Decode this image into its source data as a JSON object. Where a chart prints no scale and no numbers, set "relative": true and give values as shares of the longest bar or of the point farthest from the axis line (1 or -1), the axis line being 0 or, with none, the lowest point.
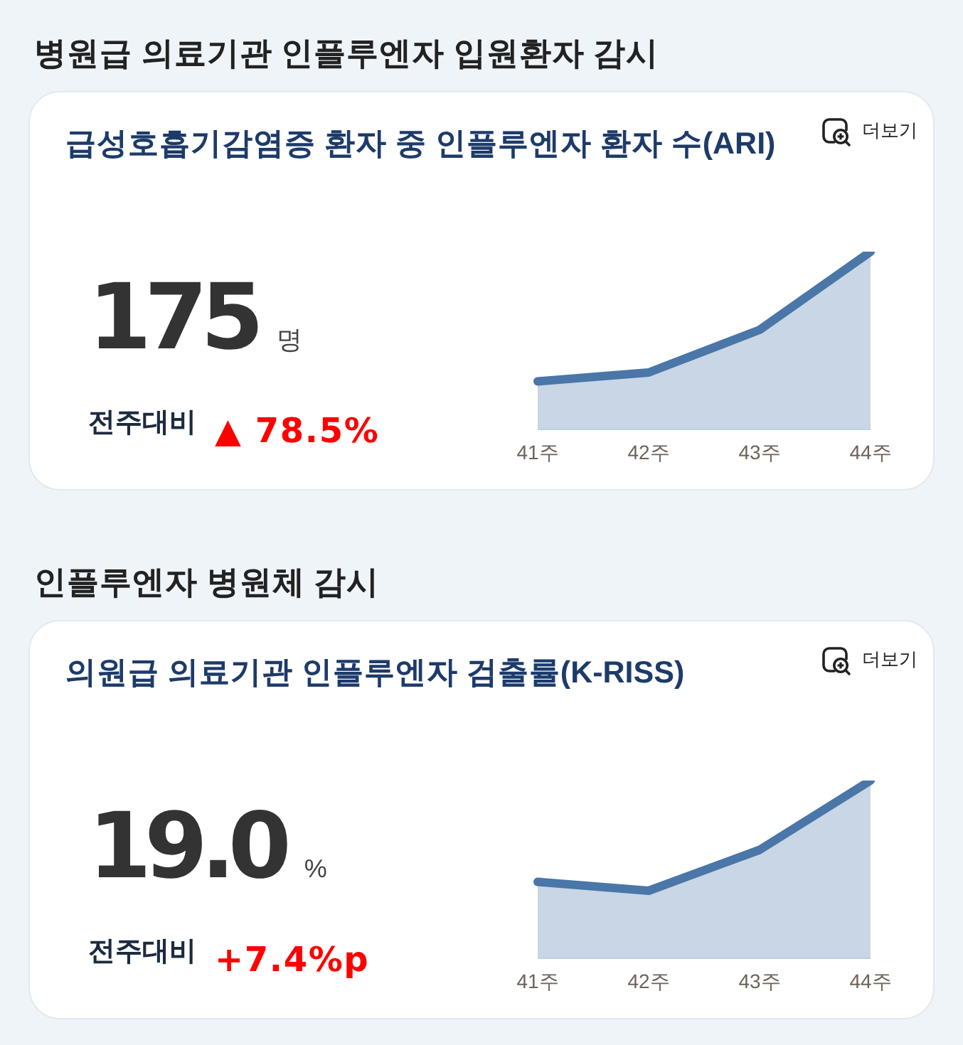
{
  "chart_data": [
    {
      "type": "area",
      "title": "병원급 의료기관 인플루엔자 입원환자 감시",
      "subtitle": "급성호흡기감염증 환자 중 인플루엔자 환자 수(ARI)",
      "categories": [
        "41주",
        "42주",
        "43주",
        "44주"
      ],
      "values": [
        0.27,
        0.32,
        0.56,
        1
      ],
      "relative": true,
      "color": "#4a76a8",
      "annotations": [
        "175",
        "명",
        "전주대비",
        "▲ 78.5%",
        "더보기"
      ]
    },
    {
      "type": "area",
      "title": "인플루엔자 병원체 감시",
      "subtitle": "의원급 의료기관 인플루엔자 검출률(K-RISS)",
      "categories": [
        "41주",
        "42주",
        "43주",
        "44주"
      ],
      "values": [
        0.43,
        0.38,
        0.61,
        1
      ],
      "relative": true,
      "color": "#4a76a8",
      "annotations": [
        "19.0",
        "%",
        "전주대비",
        "+7.4%p",
        "더보기"
      ]
    }
  ]
}
